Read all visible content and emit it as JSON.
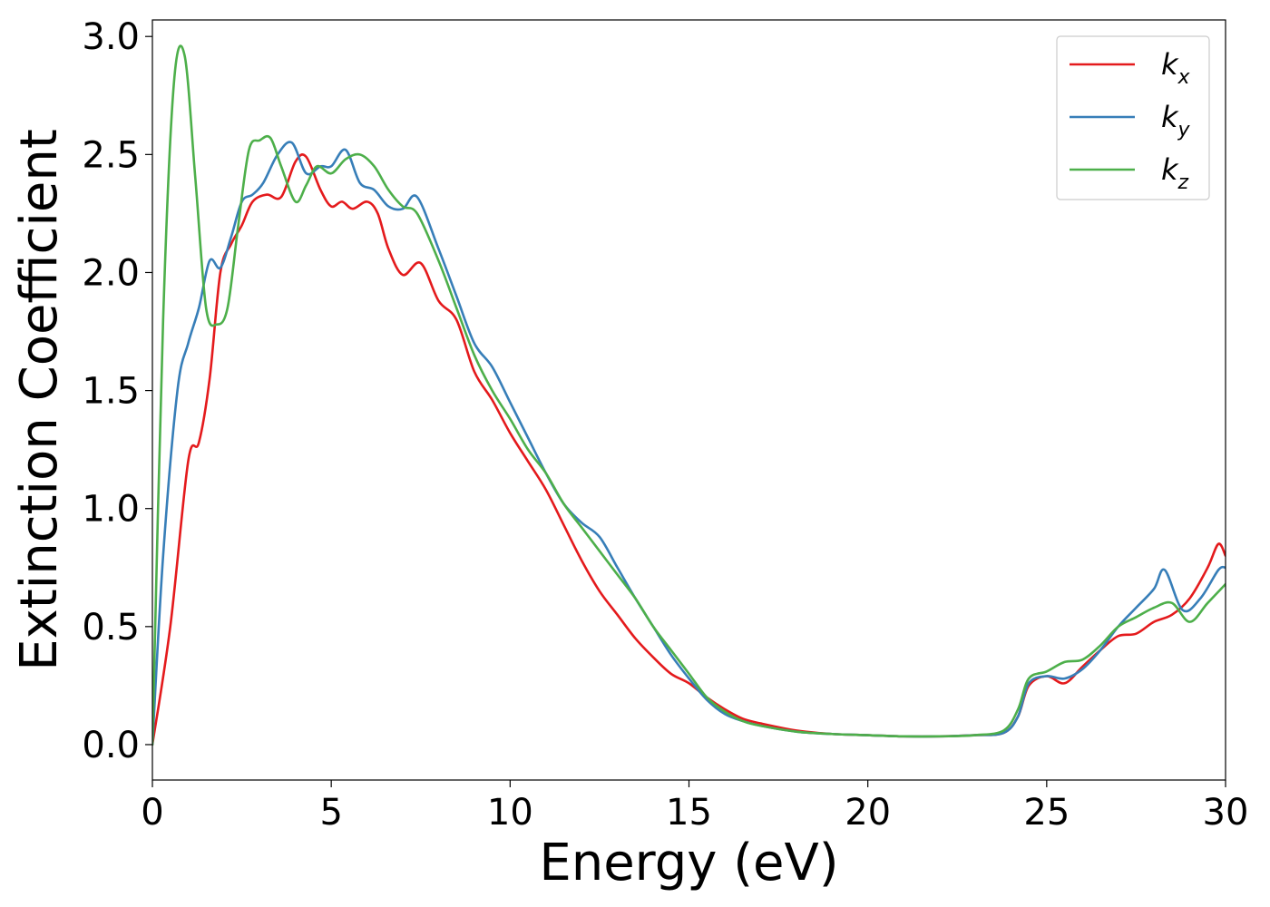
{
  "chart_data": {
    "type": "line",
    "title": "",
    "xlabel": "Energy (eV)",
    "ylabel": "Extinction Coefficient",
    "xlim": [
      0,
      30
    ],
    "ylim": [
      -0.15,
      3.07
    ],
    "xticks": [
      0,
      5,
      10,
      15,
      20,
      25,
      30
    ],
    "xtick_labels": [
      "0",
      "5",
      "10",
      "15",
      "20",
      "25",
      "30"
    ],
    "yticks": [
      0.0,
      0.5,
      1.0,
      1.5,
      2.0,
      2.5,
      3.0
    ],
    "ytick_labels": [
      "0.0",
      "0.5",
      "1.0",
      "1.5",
      "2.0",
      "2.5",
      "3.0"
    ],
    "grid": false,
    "legend_position": "top-right",
    "series": [
      {
        "name": "k_x",
        "label_main": "k",
        "label_sub": "x",
        "color": "#e41a1c",
        "x": [
          0,
          0.5,
          1.0,
          1.3,
          1.6,
          1.9,
          2.2,
          2.5,
          2.8,
          3.2,
          3.6,
          4.0,
          4.3,
          4.7,
          5.0,
          5.3,
          5.6,
          6.0,
          6.3,
          6.6,
          7.0,
          7.5,
          8.0,
          8.5,
          9.0,
          9.5,
          10.0,
          10.5,
          11.0,
          11.5,
          12.0,
          12.5,
          13.0,
          13.5,
          14.0,
          14.5,
          15.0,
          15.5,
          16.0,
          16.5,
          17.0,
          18.0,
          19.0,
          20.0,
          21.0,
          22.0,
          23.0,
          23.8,
          24.2,
          24.5,
          25.0,
          25.5,
          26.0,
          26.5,
          27.0,
          27.5,
          28.0,
          28.5,
          29.0,
          29.5,
          29.8,
          30.0
        ],
        "y": [
          0.0,
          0.5,
          1.2,
          1.28,
          1.55,
          2.0,
          2.12,
          2.2,
          2.3,
          2.33,
          2.32,
          2.47,
          2.49,
          2.35,
          2.28,
          2.3,
          2.27,
          2.3,
          2.25,
          2.1,
          1.99,
          2.04,
          1.88,
          1.8,
          1.58,
          1.46,
          1.32,
          1.2,
          1.08,
          0.93,
          0.78,
          0.65,
          0.55,
          0.45,
          0.37,
          0.3,
          0.26,
          0.2,
          0.15,
          0.11,
          0.09,
          0.06,
          0.045,
          0.04,
          0.035,
          0.035,
          0.04,
          0.05,
          0.12,
          0.25,
          0.29,
          0.26,
          0.33,
          0.4,
          0.46,
          0.47,
          0.52,
          0.55,
          0.62,
          0.75,
          0.85,
          0.8
        ]
      },
      {
        "name": "k_y",
        "label_main": "k",
        "label_sub": "y",
        "color": "#377eb8",
        "x": [
          0,
          0.3,
          0.7,
          1.0,
          1.3,
          1.6,
          1.9,
          2.2,
          2.5,
          2.8,
          3.1,
          3.5,
          3.9,
          4.3,
          4.7,
          5.0,
          5.4,
          5.8,
          6.2,
          6.6,
          7.0,
          7.4,
          8.0,
          8.5,
          9.0,
          9.5,
          10.0,
          10.5,
          11.0,
          11.5,
          12.0,
          12.5,
          13.0,
          13.5,
          14.0,
          14.5,
          15.0,
          15.5,
          16.0,
          16.5,
          17.0,
          18.0,
          19.0,
          20.0,
          21.0,
          22.0,
          23.0,
          23.8,
          24.2,
          24.5,
          25.0,
          25.5,
          26.0,
          26.5,
          27.0,
          27.5,
          28.0,
          28.3,
          28.8,
          29.3,
          29.8,
          30.0
        ],
        "y": [
          0.0,
          0.8,
          1.5,
          1.7,
          1.85,
          2.05,
          2.02,
          2.15,
          2.3,
          2.33,
          2.38,
          2.5,
          2.55,
          2.42,
          2.45,
          2.45,
          2.52,
          2.38,
          2.35,
          2.28,
          2.27,
          2.32,
          2.1,
          1.9,
          1.7,
          1.6,
          1.45,
          1.3,
          1.15,
          1.02,
          0.94,
          0.88,
          0.75,
          0.62,
          0.5,
          0.38,
          0.28,
          0.19,
          0.13,
          0.1,
          0.08,
          0.055,
          0.045,
          0.04,
          0.035,
          0.035,
          0.04,
          0.05,
          0.12,
          0.26,
          0.29,
          0.28,
          0.32,
          0.4,
          0.5,
          0.58,
          0.66,
          0.74,
          0.57,
          0.62,
          0.74,
          0.75
        ]
      },
      {
        "name": "k_z",
        "label_main": "k",
        "label_sub": "z",
        "color": "#4daf4a",
        "x": [
          0,
          0.3,
          0.6,
          0.9,
          1.2,
          1.5,
          1.8,
          2.1,
          2.4,
          2.7,
          3.0,
          3.3,
          3.6,
          4.0,
          4.3,
          4.6,
          5.0,
          5.4,
          5.8,
          6.2,
          6.6,
          7.0,
          7.4,
          8.0,
          8.5,
          9.0,
          9.5,
          10.0,
          10.5,
          11.0,
          11.5,
          12.0,
          12.5,
          13.0,
          13.5,
          14.0,
          14.5,
          15.0,
          15.5,
          16.0,
          16.5,
          17.0,
          18.0,
          19.0,
          20.0,
          21.0,
          22.0,
          23.0,
          23.8,
          24.2,
          24.5,
          25.0,
          25.5,
          26.0,
          26.5,
          27.0,
          27.5,
          28.0,
          28.5,
          29.0,
          29.5,
          30.0
        ],
        "y": [
          0.0,
          1.8,
          2.8,
          2.92,
          2.4,
          1.85,
          1.78,
          1.85,
          2.2,
          2.52,
          2.56,
          2.57,
          2.45,
          2.3,
          2.37,
          2.45,
          2.42,
          2.48,
          2.5,
          2.45,
          2.35,
          2.28,
          2.25,
          2.05,
          1.85,
          1.65,
          1.5,
          1.38,
          1.25,
          1.15,
          1.02,
          0.92,
          0.82,
          0.72,
          0.62,
          0.5,
          0.4,
          0.3,
          0.2,
          0.14,
          0.1,
          0.08,
          0.055,
          0.045,
          0.04,
          0.035,
          0.035,
          0.04,
          0.06,
          0.15,
          0.28,
          0.31,
          0.35,
          0.36,
          0.42,
          0.5,
          0.54,
          0.58,
          0.6,
          0.52,
          0.6,
          0.68
        ]
      }
    ]
  }
}
